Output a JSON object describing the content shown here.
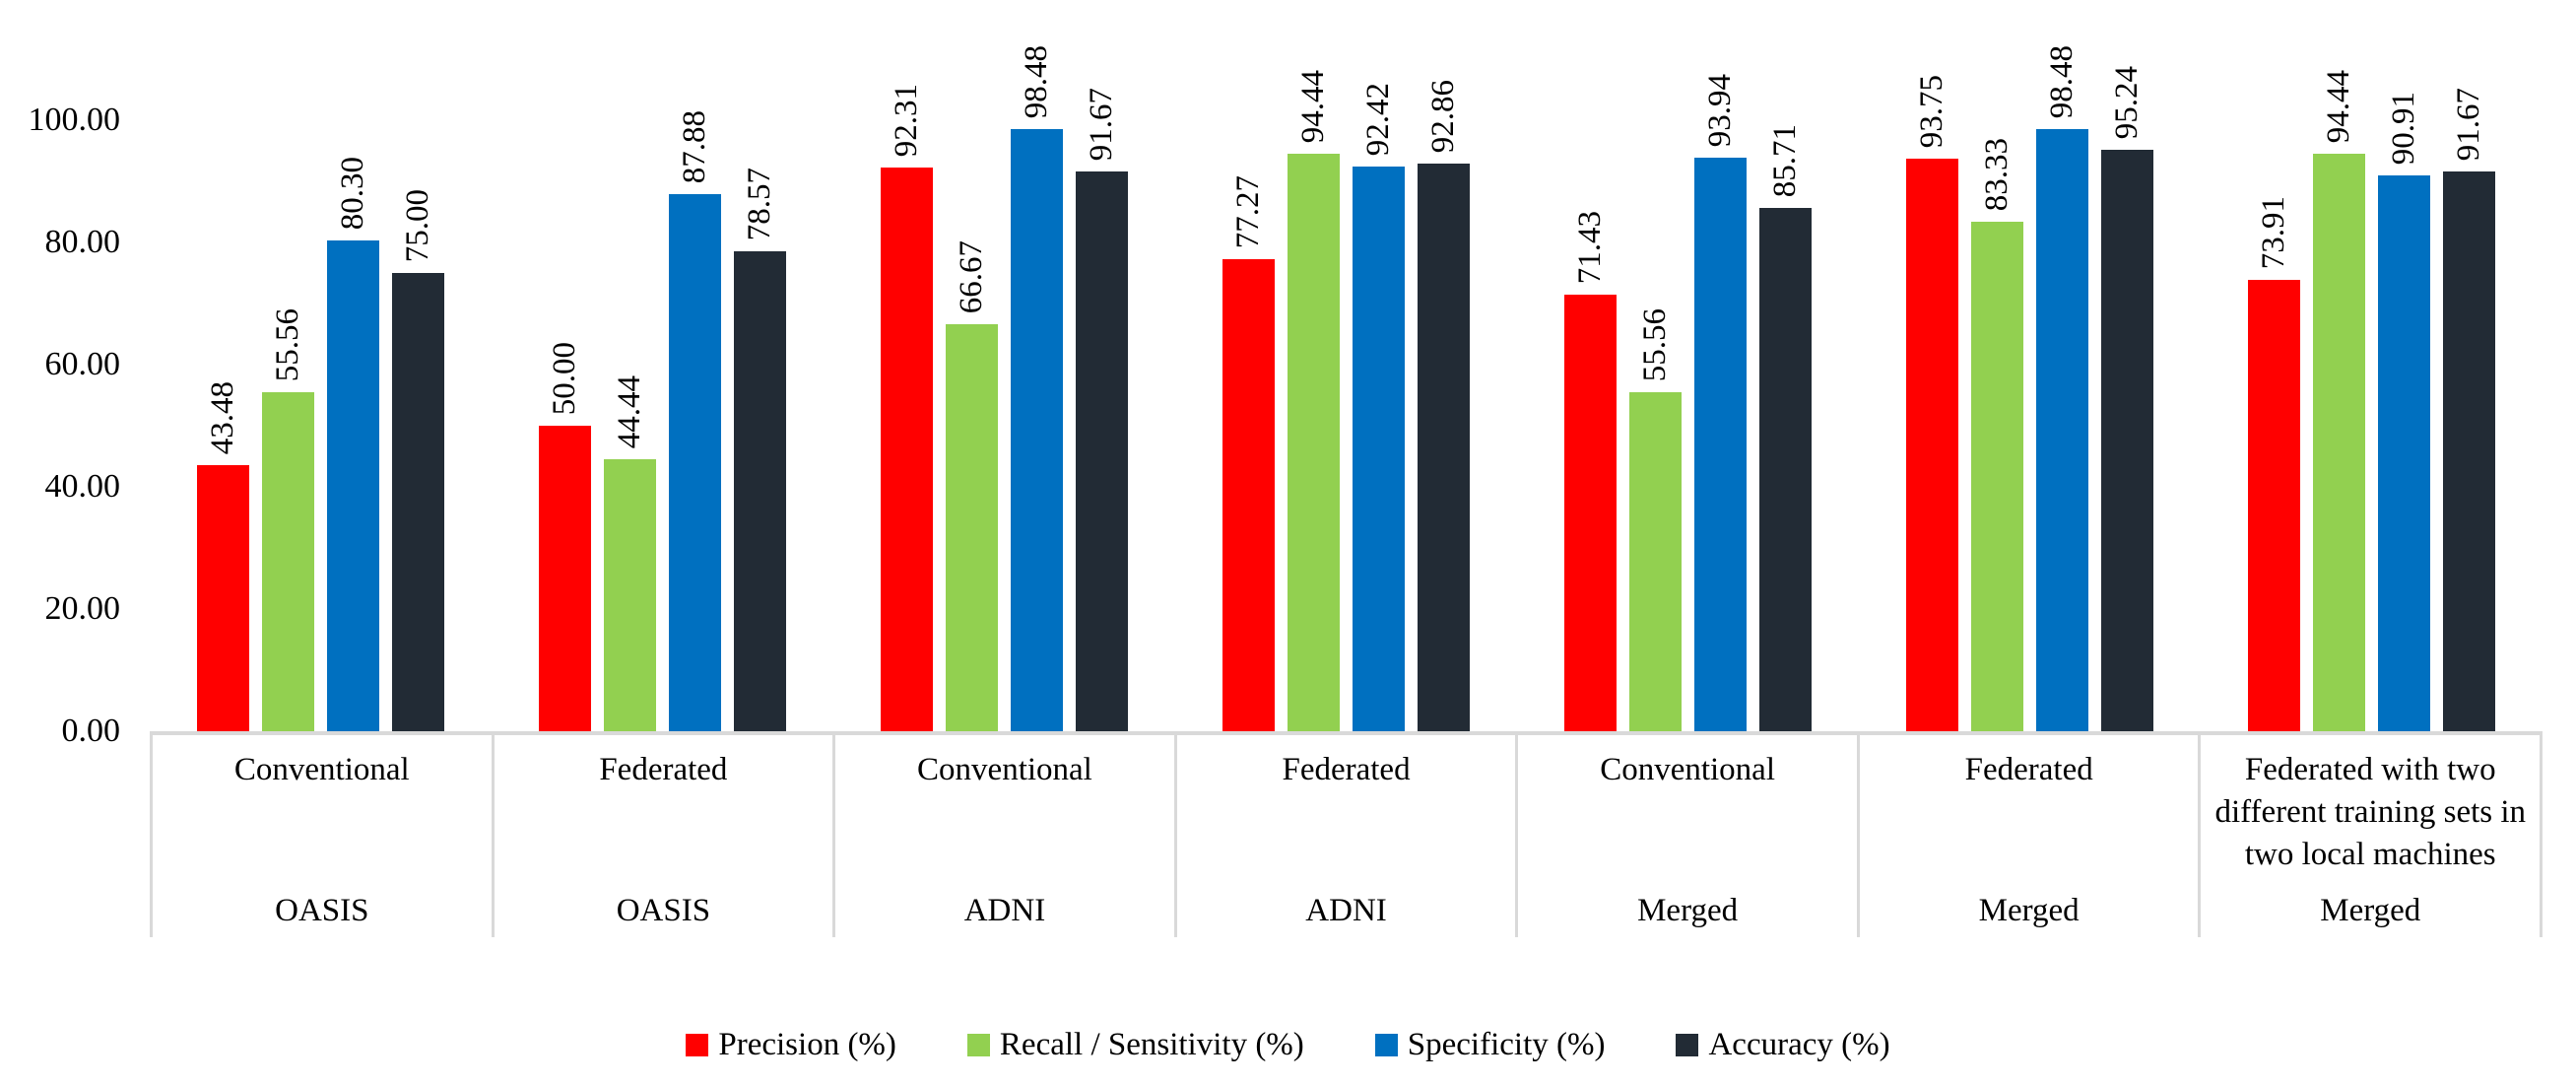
{
  "chart_data": {
    "type": "bar",
    "title": "",
    "xlabel": "",
    "ylabel": "",
    "gridlines": false,
    "legend_position": "bottom",
    "y_axis": {
      "min": 0,
      "max": 100,
      "tick_step": 20,
      "tick_labels": [
        "0.00",
        "20.00",
        "40.00",
        "60.00",
        "80.00",
        "100.00"
      ]
    },
    "groups": [
      {
        "method": "Conventional",
        "dataset": "OASIS"
      },
      {
        "method": "Federated",
        "dataset": "OASIS"
      },
      {
        "method": "Conventional",
        "dataset": "ADNI"
      },
      {
        "method": "Federated",
        "dataset": "ADNI"
      },
      {
        "method": "Conventional",
        "dataset": "Merged"
      },
      {
        "method": "Federated",
        "dataset": "Merged"
      },
      {
        "method": "Federated with two different training sets in two local machines",
        "dataset": "Merged"
      }
    ],
    "series": [
      {
        "name": "Precision (%)",
        "color": "#FF0000",
        "values": [
          43.48,
          50.0,
          92.31,
          77.27,
          71.43,
          93.75,
          73.91
        ],
        "labels": [
          "43.48",
          "50.00",
          "92.31",
          "77.27",
          "71.43",
          "93.75",
          "73.91"
        ]
      },
      {
        "name": "Recall / Sensitivity (%)",
        "color": "#92D050",
        "values": [
          55.56,
          44.44,
          66.67,
          94.44,
          55.56,
          83.33,
          94.44
        ],
        "labels": [
          "55.56",
          "44.44",
          "66.67",
          "94.44",
          "55.56",
          "83.33",
          "94.44"
        ]
      },
      {
        "name": "Specificity (%)",
        "color": "#0070C0",
        "values": [
          80.3,
          87.88,
          98.48,
          92.42,
          93.94,
          98.48,
          90.91
        ],
        "labels": [
          "80.30",
          "87.88",
          "98.48",
          "92.42",
          "93.94",
          "98.48",
          "90.91"
        ]
      },
      {
        "name": "Accuracy (%)",
        "color": "#222B35",
        "values": [
          75.0,
          78.57,
          91.67,
          92.86,
          85.71,
          95.24,
          91.67
        ],
        "labels": [
          "75.00",
          "78.57",
          "91.67",
          "92.86",
          "85.71",
          "95.24",
          "91.67"
        ]
      }
    ],
    "colors": {
      "axis_line": "#D9D9D9",
      "text": "#000000",
      "background": "#FFFFFF"
    }
  }
}
